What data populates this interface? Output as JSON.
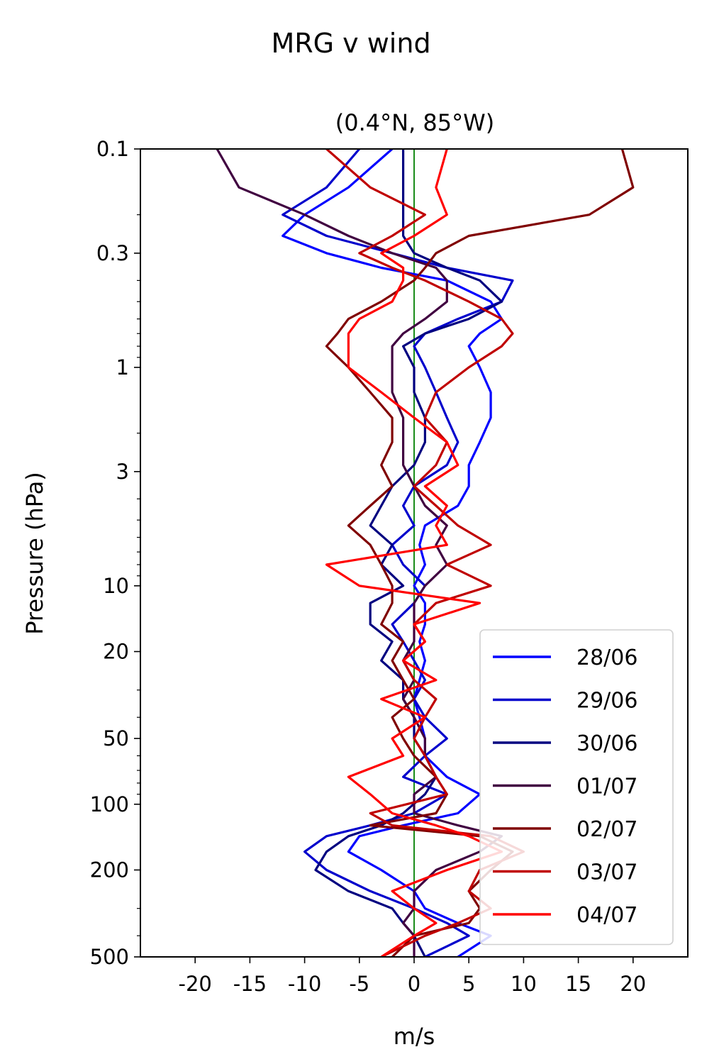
{
  "chart_data": {
    "type": "line",
    "suptitle": "MRG v wind",
    "title": "(0.4°N, 85°W)",
    "xlabel": "m/s",
    "ylabel": "Pressure (hPa)",
    "xlim": [
      -25,
      25
    ],
    "ylim": [
      500,
      0.1
    ],
    "y_scale": "log",
    "y_inverted": true,
    "x_ticks": [
      -20,
      -15,
      -10,
      -5,
      0,
      5,
      10,
      15,
      20
    ],
    "x_tick_labels": [
      "-20",
      "-15",
      "-10",
      "-5",
      "0",
      "5",
      "10",
      "15",
      "20"
    ],
    "y_ticks": [
      0.1,
      0.3,
      1,
      3,
      10,
      20,
      50,
      100,
      200,
      500
    ],
    "y_tick_labels": [
      "0.1",
      "0.3",
      "1",
      "3",
      "10",
      "20",
      "50",
      "100",
      "200",
      "500"
    ],
    "zero_line_color": "#008000",
    "legend_position": "lower-right",
    "series": [
      {
        "name": "28/06",
        "color": "#0000ff",
        "x": [
          -2,
          -6,
          -10,
          -12,
          -8,
          -3,
          3,
          7,
          8,
          6,
          5,
          6,
          7,
          7,
          6,
          5,
          5,
          4,
          1,
          0.5,
          1,
          0,
          1,
          1,
          0.5,
          1,
          0.5,
          0,
          0.5,
          1,
          1,
          3,
          6,
          4,
          -1,
          -5,
          -6,
          -3,
          0,
          1,
          4,
          7,
          4
        ],
        "y": [
          0.1,
          0.15,
          0.2,
          0.25,
          0.3,
          0.35,
          0.4,
          0.5,
          0.6,
          0.7,
          0.8,
          1,
          1.3,
          1.7,
          2.2,
          2.8,
          3.5,
          4.3,
          5.3,
          6.5,
          8,
          10,
          12,
          15,
          18,
          22,
          27,
          33,
          40,
          50,
          60,
          75,
          90,
          110,
          125,
          140,
          165,
          200,
          250,
          300,
          350,
          400,
          500
        ]
      },
      {
        "name": "29/06",
        "color": "#0000cc",
        "x": [
          -5,
          -8,
          -12,
          -8,
          -2,
          3,
          9,
          8,
          4,
          1,
          0,
          1,
          2,
          3,
          4,
          3,
          0,
          -1,
          0,
          -2,
          -1,
          1,
          0,
          -2,
          -1,
          0,
          1,
          0,
          1,
          3,
          1,
          -1,
          3,
          0,
          -4,
          -8,
          -10,
          -8,
          -4,
          0,
          3,
          5,
          1
        ],
        "y": [
          0.1,
          0.15,
          0.2,
          0.25,
          0.3,
          0.35,
          0.4,
          0.5,
          0.6,
          0.7,
          0.8,
          1,
          1.3,
          1.7,
          2.2,
          2.8,
          3.5,
          4.3,
          5.3,
          6.5,
          8,
          10,
          12,
          15,
          18,
          22,
          27,
          33,
          40,
          50,
          60,
          75,
          90,
          110,
          125,
          140,
          165,
          200,
          250,
          300,
          350,
          400,
          500
        ]
      },
      {
        "name": "30/06",
        "color": "#000080",
        "x": [
          -1,
          -1,
          -1,
          -1,
          0,
          3,
          6,
          8,
          5,
          1,
          -1,
          0,
          0,
          1,
          1,
          0,
          -2,
          -3,
          -4,
          -2,
          -3,
          -1,
          -4,
          -4,
          -2,
          -3,
          -1,
          -1,
          0,
          0,
          1,
          2,
          1,
          -1,
          -3,
          -6,
          -8,
          -9,
          -6,
          -2,
          -1,
          0,
          1
        ],
        "y": [
          0.1,
          0.15,
          0.2,
          0.25,
          0.3,
          0.35,
          0.4,
          0.5,
          0.6,
          0.7,
          0.8,
          1,
          1.3,
          1.7,
          2.2,
          2.8,
          3.5,
          4.3,
          5.3,
          6.5,
          8,
          10,
          12,
          15,
          18,
          22,
          27,
          33,
          40,
          50,
          60,
          75,
          90,
          110,
          125,
          140,
          165,
          200,
          250,
          300,
          350,
          400,
          500
        ]
      },
      {
        "name": "01/07",
        "color": "#400040",
        "x": [
          -18,
          -16,
          -10,
          -6,
          -2,
          2,
          3,
          3,
          1,
          -1,
          -2,
          -2,
          -2,
          -1,
          -1,
          -1,
          0,
          1,
          3,
          2,
          3,
          1,
          0,
          0,
          0,
          -1,
          0,
          -1,
          0,
          1,
          1,
          2,
          0,
          0,
          4,
          8,
          6,
          2,
          0,
          0,
          -1,
          0,
          0
        ],
        "y": [
          0.1,
          0.15,
          0.2,
          0.25,
          0.3,
          0.35,
          0.4,
          0.5,
          0.6,
          0.7,
          0.8,
          1,
          1.3,
          1.7,
          2.2,
          2.8,
          3.5,
          4.3,
          5.3,
          6.5,
          8,
          10,
          12,
          15,
          18,
          22,
          27,
          33,
          40,
          50,
          60,
          75,
          90,
          110,
          125,
          140,
          165,
          200,
          250,
          300,
          350,
          400,
          500
        ]
      },
      {
        "name": "02/07",
        "color": "#800000",
        "x": [
          19,
          20,
          16,
          5,
          2,
          1,
          0,
          -3,
          -6,
          -7,
          -8,
          -6,
          -4,
          -2,
          -2,
          -3,
          -2,
          -4,
          -6,
          -4,
          -3,
          -2,
          -2,
          -3,
          -1,
          -2,
          -1,
          0,
          -2,
          -1,
          0,
          2,
          3,
          2,
          -4,
          6,
          9,
          7,
          5,
          6,
          5,
          0,
          -2
        ],
        "y": [
          0.1,
          0.15,
          0.2,
          0.25,
          0.3,
          0.35,
          0.4,
          0.5,
          0.6,
          0.7,
          0.8,
          1,
          1.3,
          1.7,
          2.2,
          2.8,
          3.5,
          4.3,
          5.3,
          6.5,
          8,
          10,
          12,
          15,
          18,
          22,
          27,
          33,
          40,
          50,
          60,
          75,
          90,
          110,
          125,
          140,
          165,
          200,
          250,
          300,
          350,
          400,
          500
        ]
      },
      {
        "name": "03/07",
        "color": "#c00000",
        "x": [
          -8,
          -4,
          1,
          -2,
          -5,
          -2,
          1,
          5,
          8,
          9,
          8,
          5,
          2,
          1,
          3,
          2,
          0,
          2,
          4,
          7,
          3,
          7,
          2,
          0,
          1,
          -1,
          0,
          2,
          1,
          0,
          1,
          2,
          3,
          -4,
          -2,
          7,
          10,
          6,
          5,
          7,
          4,
          1,
          -3
        ],
        "y": [
          0.1,
          0.15,
          0.2,
          0.25,
          0.3,
          0.35,
          0.4,
          0.5,
          0.6,
          0.7,
          0.8,
          1,
          1.3,
          1.7,
          2.2,
          2.8,
          3.5,
          4.3,
          5.3,
          6.5,
          8,
          10,
          12,
          15,
          18,
          22,
          27,
          33,
          40,
          50,
          60,
          75,
          90,
          110,
          125,
          140,
          165,
          200,
          250,
          300,
          350,
          400,
          500
        ]
      },
      {
        "name": "04/07",
        "color": "#ff0000",
        "x": [
          3,
          2,
          3,
          0,
          -3,
          -1,
          -1,
          -2,
          -5,
          -6,
          -6,
          -6,
          -3,
          0,
          3,
          4,
          1,
          3,
          2,
          3,
          -8,
          -5,
          6,
          0,
          1,
          -1,
          2,
          -3,
          1,
          -2,
          -1,
          -6,
          -4,
          -2,
          2,
          5,
          8,
          3,
          -2,
          0,
          2,
          0,
          -3
        ],
        "y": [
          0.1,
          0.15,
          0.2,
          0.25,
          0.3,
          0.35,
          0.4,
          0.5,
          0.6,
          0.7,
          0.8,
          1,
          1.3,
          1.7,
          2.2,
          2.8,
          3.5,
          4.3,
          5.3,
          6.5,
          8,
          10,
          12,
          15,
          18,
          22,
          27,
          33,
          40,
          50,
          60,
          75,
          90,
          110,
          125,
          140,
          165,
          200,
          250,
          300,
          350,
          400,
          500
        ]
      }
    ]
  }
}
